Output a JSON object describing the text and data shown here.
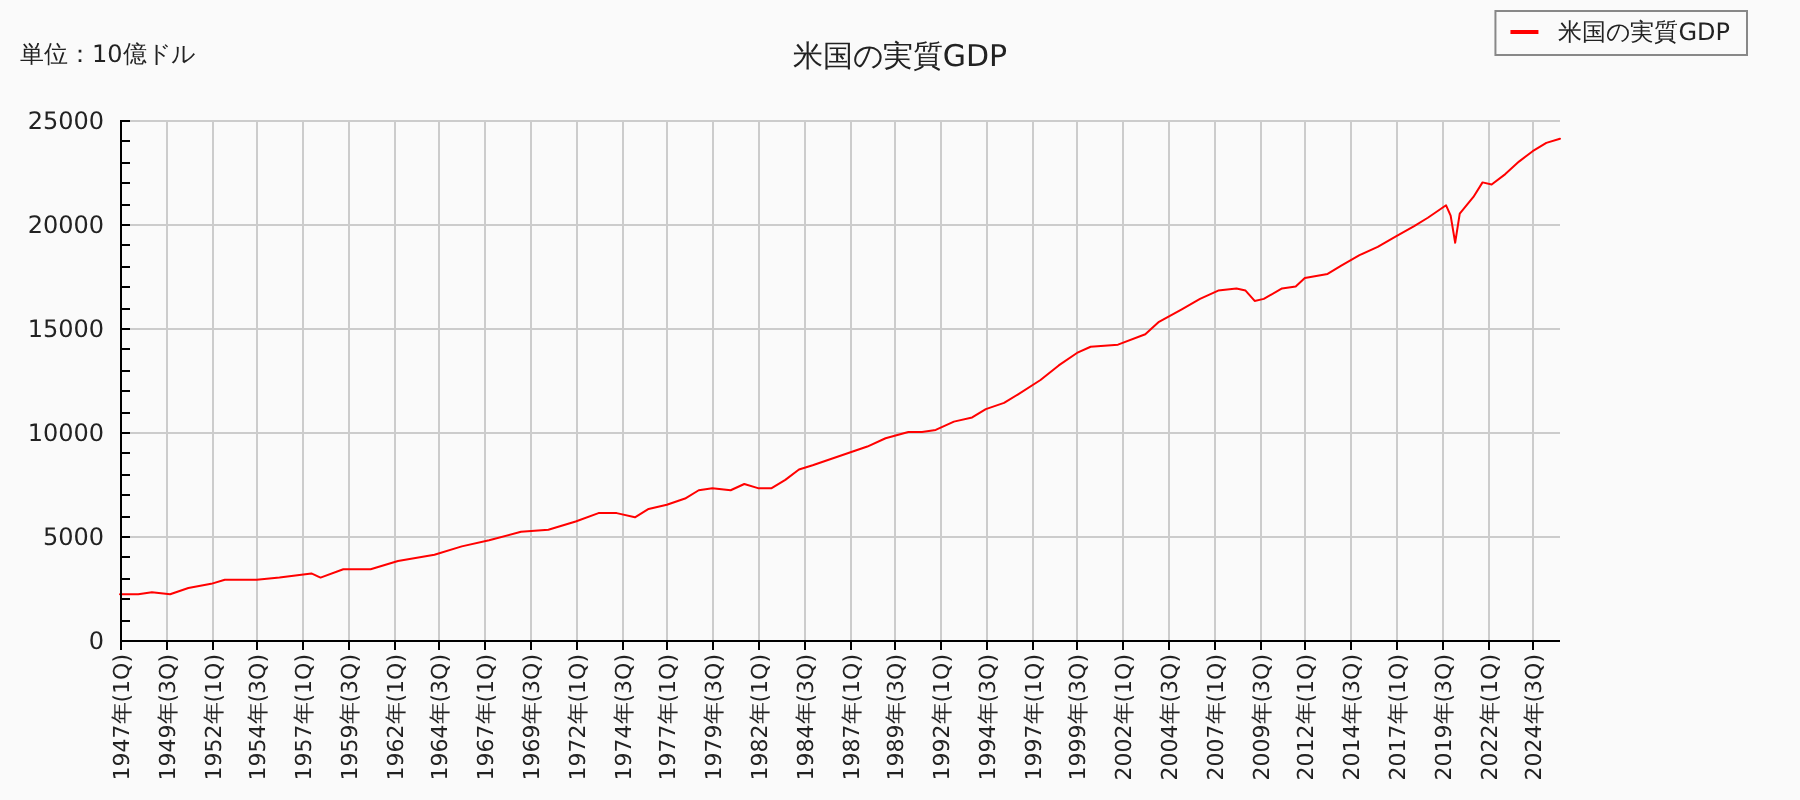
{
  "chart_data": {
    "type": "line",
    "title": "米国の実質GDP",
    "ylabel": "単位：10億ドル",
    "x": [
      "1947-01",
      "1948-01",
      "1948-10",
      "1949-10",
      "1950-10",
      "1952-01",
      "1952-10",
      "1954-07",
      "1955-10",
      "1957-07",
      "1958-01",
      "1959-04",
      "1960-10",
      "1962-04",
      "1964-04",
      "1965-10",
      "1967-04",
      "1969-01",
      "1970-07",
      "1972-01",
      "1973-04",
      "1973-10",
      "1974-04",
      "1975-04",
      "1976-01",
      "1977-01",
      "1978-01",
      "1978-10",
      "1979-07",
      "1980-07",
      "1981-04",
      "1982-01",
      "1982-10",
      "1983-07",
      "1984-04",
      "1985-01",
      "1986-01",
      "1987-01",
      "1988-01",
      "1989-01",
      "1990-04",
      "1991-01",
      "1991-10",
      "1992-10",
      "1993-10",
      "1994-07",
      "1995-07",
      "1996-04",
      "1997-07",
      "1998-07",
      "1999-07",
      "2000-04",
      "2001-10",
      "2003-04",
      "2004-01",
      "2005-04",
      "2006-04",
      "2007-04",
      "2008-04",
      "2008-10",
      "2009-04",
      "2009-10",
      "2010-10",
      "2011-07",
      "2012-01",
      "2013-04",
      "2014-01",
      "2015-01",
      "2016-01",
      "2017-01",
      "2018-01",
      "2018-10",
      "2019-10",
      "2020-01",
      "2020-04",
      "2020-07",
      "2021-04",
      "2021-10",
      "2022-04",
      "2023-01",
      "2023-10",
      "2024-07",
      "2025-04",
      "2026-01"
    ],
    "xlim": [
      "1947-01",
      "2026-01"
    ],
    "xticks": [
      {
        "value": "1947-01",
        "label": "1947年(1Q)"
      },
      {
        "value": "1949-07",
        "label": "1949年(3Q)"
      },
      {
        "value": "1952-01",
        "label": "1952年(1Q)"
      },
      {
        "value": "1954-07",
        "label": "1954年(3Q)"
      },
      {
        "value": "1957-01",
        "label": "1957年(1Q)"
      },
      {
        "value": "1959-07",
        "label": "1959年(3Q)"
      },
      {
        "value": "1962-01",
        "label": "1962年(1Q)"
      },
      {
        "value": "1964-07",
        "label": "1964年(3Q)"
      },
      {
        "value": "1967-01",
        "label": "1967年(1Q)"
      },
      {
        "value": "1969-07",
        "label": "1969年(3Q)"
      },
      {
        "value": "1972-01",
        "label": "1972年(1Q)"
      },
      {
        "value": "1974-07",
        "label": "1974年(3Q)"
      },
      {
        "value": "1977-01",
        "label": "1977年(1Q)"
      },
      {
        "value": "1979-07",
        "label": "1979年(3Q)"
      },
      {
        "value": "1982-01",
        "label": "1982年(1Q)"
      },
      {
        "value": "1984-07",
        "label": "1984年(3Q)"
      },
      {
        "value": "1987-01",
        "label": "1987年(1Q)"
      },
      {
        "value": "1989-07",
        "label": "1989年(3Q)"
      },
      {
        "value": "1992-01",
        "label": "1992年(1Q)"
      },
      {
        "value": "1994-07",
        "label": "1994年(3Q)"
      },
      {
        "value": "1997-01",
        "label": "1997年(1Q)"
      },
      {
        "value": "1999-07",
        "label": "1999年(3Q)"
      },
      {
        "value": "2002-01",
        "label": "2002年(1Q)"
      },
      {
        "value": "2004-07",
        "label": "2004年(3Q)"
      },
      {
        "value": "2007-01",
        "label": "2007年(1Q)"
      },
      {
        "value": "2009-07",
        "label": "2009年(3Q)"
      },
      {
        "value": "2012-01",
        "label": "2012年(1Q)"
      },
      {
        "value": "2014-07",
        "label": "2014年(3Q)"
      },
      {
        "value": "2017-01",
        "label": "2017年(1Q)"
      },
      {
        "value": "2019-07",
        "label": "2019年(3Q)"
      },
      {
        "value": "2022-01",
        "label": "2022年(1Q)"
      },
      {
        "value": "2024-07",
        "label": "2024年(3Q)"
      }
    ],
    "ylim": [
      0,
      25000
    ],
    "yticks": [
      0,
      {
        "value": 1000,
        "label": null
      },
      {
        "value": 2000,
        "label": null
      },
      {
        "value": 3000,
        "label": null
      },
      {
        "value": 4000,
        "label": null
      },
      5000,
      {
        "value": 6000,
        "label": null
      },
      {
        "value": 7000,
        "label": null
      },
      {
        "value": 8000,
        "label": null
      },
      {
        "value": 9000,
        "label": null
      },
      10000,
      {
        "value": 11000,
        "label": null
      },
      {
        "value": 12000,
        "label": null
      },
      {
        "value": 13000,
        "label": null
      },
      {
        "value": 14000,
        "label": null
      },
      15000,
      {
        "value": 16000,
        "label": null
      },
      {
        "value": 17000,
        "label": null
      },
      {
        "value": 18000,
        "label": null
      },
      {
        "value": 19000,
        "label": null
      },
      20000,
      {
        "value": 21000,
        "label": null
      },
      {
        "value": 22000,
        "label": null
      },
      {
        "value": 23000,
        "label": null
      },
      {
        "value": 24000,
        "label": null
      },
      25000
    ],
    "grid": true,
    "legend": "top right",
    "series": [
      {
        "name": "米国の実質GDP",
        "color": "#ff0000",
        "values": [
          2200,
          2200,
          2300,
          2200,
          2500,
          2700,
          2900,
          2900,
          3000,
          3200,
          3000,
          3400,
          3400,
          3800,
          4100,
          4500,
          4800,
          5200,
          5300,
          5700,
          6100,
          6100,
          6100,
          5900,
          6300,
          6500,
          6800,
          7200,
          7300,
          7200,
          7500,
          7300,
          7300,
          7700,
          8200,
          8400,
          8700,
          9000,
          9300,
          9700,
          10000,
          10000,
          10100,
          10500,
          10700,
          11100,
          11400,
          11800,
          12500,
          13200,
          13800,
          14100,
          14200,
          14700,
          15300,
          15900,
          16400,
          16800,
          16900,
          16800,
          16300,
          16400,
          16900,
          17000,
          17400,
          17600,
          18000,
          18500,
          18900,
          19400,
          19900,
          20300,
          20900,
          20400,
          19100,
          20500,
          21300,
          22000,
          21900,
          22400,
          23000,
          23500,
          23900,
          24100
        ]
      }
    ]
  }
}
